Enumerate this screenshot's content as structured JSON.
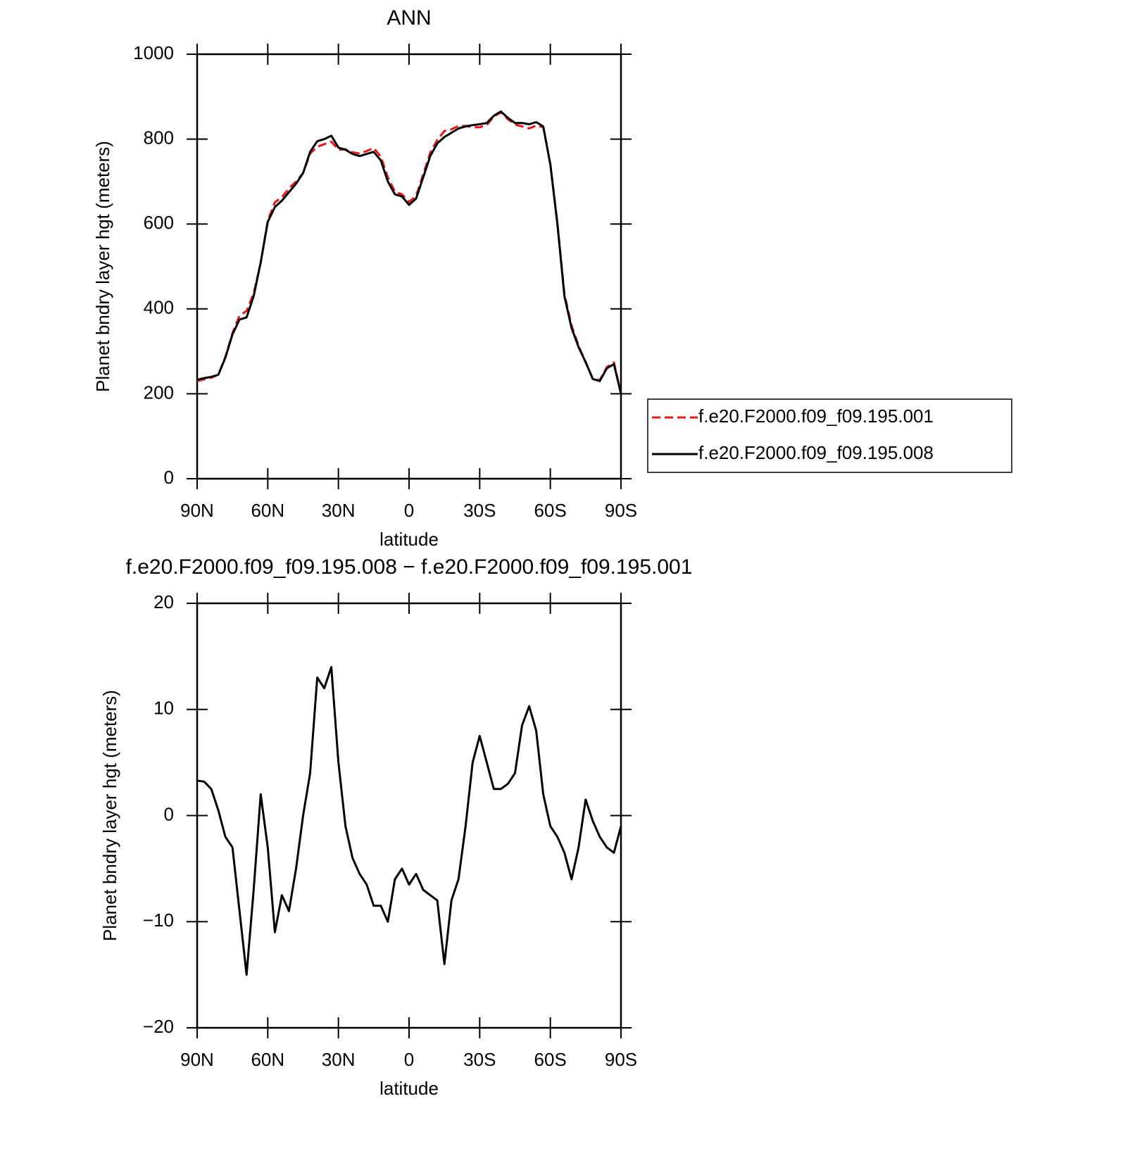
{
  "chart_data": [
    {
      "type": "line",
      "title": "ANN",
      "xlabel": "latitude",
      "ylabel": "Planet bndry layer hgt (meters)",
      "x": [
        90,
        87,
        84,
        81,
        78,
        75,
        72,
        69,
        66,
        63,
        60,
        57,
        54,
        51,
        48,
        45,
        42,
        39,
        36,
        33,
        30,
        27,
        24,
        21,
        18,
        15,
        12,
        9,
        6,
        3,
        0,
        -3,
        -6,
        -9,
        -12,
        -15,
        -18,
        -21,
        -24,
        -27,
        -30,
        -33,
        -36,
        -39,
        -42,
        -45,
        -48,
        -51,
        -54,
        -57,
        -60,
        -63,
        -66,
        -69,
        -72,
        -75,
        -78,
        -81,
        -84,
        -87,
        -90
      ],
      "series": [
        {
          "name": "f.e20.F2000.f09_f09.195.001",
          "color": "#e8161b",
          "linestyle": "dashed",
          "values": [
            230,
            234,
            238,
            245,
            287,
            343,
            384,
            395,
            437,
            508,
            608,
            651,
            663,
            684,
            700,
            720,
            766,
            782,
            788,
            794,
            775,
            776,
            769,
            766,
            772,
            779,
            759,
            710,
            676,
            670,
            652,
            666,
            717,
            768,
            798,
            819,
            823,
            831,
            831,
            828,
            828,
            833,
            853,
            863,
            847,
            834,
            830,
            825,
            832,
            828,
            741,
            602,
            434,
            361,
            313,
            274,
            236,
            232,
            263,
            274,
            201
          ]
        },
        {
          "name": "f.e20.F2000.f09_f09.195.008",
          "color": "#000000",
          "linestyle": "solid",
          "values": [
            233,
            237,
            240,
            245,
            285,
            340,
            375,
            380,
            430,
            510,
            605,
            640,
            655,
            675,
            695,
            720,
            770,
            795,
            800,
            808,
            780,
            775,
            765,
            760,
            765,
            770,
            750,
            700,
            670,
            665,
            645,
            660,
            710,
            760,
            790,
            805,
            815,
            825,
            830,
            833,
            835,
            838,
            855,
            865,
            850,
            838,
            838,
            835,
            840,
            830,
            740,
            600,
            430,
            355,
            310,
            275,
            235,
            230,
            260,
            270,
            200
          ]
        }
      ],
      "xlim": [
        90,
        -90
      ],
      "xticks": [
        {
          "value": 90,
          "label": "90N"
        },
        {
          "value": 60,
          "label": "60N"
        },
        {
          "value": 30,
          "label": "30N"
        },
        0,
        {
          "value": -30,
          "label": "30S"
        },
        {
          "value": -60,
          "label": "60S"
        },
        {
          "value": -90,
          "label": "90S"
        }
      ],
      "ylim": [
        0,
        1000
      ],
      "yticks": [
        0,
        200,
        400,
        600,
        800,
        1000
      ],
      "legend": "right"
    },
    {
      "type": "line",
      "title": "f.e20.F2000.f09_f09.195.008 − f.e20.F2000.f09_f09.195.001",
      "xlabel": "latitude",
      "ylabel": "Planet bndry layer hgt (meters)",
      "x": [
        90,
        87,
        84,
        81,
        78,
        75,
        72,
        69,
        66,
        63,
        60,
        57,
        54,
        51,
        48,
        45,
        42,
        39,
        36,
        33,
        30,
        27,
        24,
        21,
        18,
        15,
        12,
        9,
        6,
        3,
        0,
        -3,
        -6,
        -9,
        -12,
        -15,
        -18,
        -21,
        -24,
        -27,
        -30,
        -33,
        -36,
        -39,
        -42,
        -45,
        -48,
        -51,
        -54,
        -57,
        -60,
        -63,
        -66,
        -69,
        -72,
        -75,
        -78,
        -81,
        -84,
        -87,
        -90
      ],
      "series": [
        {
          "color": "#000000",
          "linestyle": "solid",
          "values": [
            3.3,
            3.2,
            2.5,
            0.5,
            -2,
            -3,
            -9,
            -15,
            -7,
            2,
            -3,
            -11,
            -7.5,
            -9,
            -5,
            0,
            4,
            13,
            12,
            14,
            5,
            -1,
            -4,
            -5.5,
            -6.5,
            -8.5,
            -8.5,
            -10,
            -6,
            -5,
            -6.5,
            -5.5,
            -7,
            -7.5,
            -8,
            -14,
            -8,
            -6,
            -1,
            5,
            7.5,
            5,
            2.5,
            2.5,
            3,
            4,
            8.5,
            10.3,
            8,
            2,
            -1,
            -2,
            -3.5,
            -6,
            -3,
            1.5,
            -0.5,
            -2,
            -3,
            -3.5,
            -1
          ]
        }
      ],
      "xlim": [
        90,
        -90
      ],
      "xticks": [
        {
          "value": 90,
          "label": "90N"
        },
        {
          "value": 60,
          "label": "60N"
        },
        {
          "value": 30,
          "label": "30N"
        },
        0,
        {
          "value": -30,
          "label": "30S"
        },
        {
          "value": -60,
          "label": "60S"
        },
        {
          "value": -90,
          "label": "90S"
        }
      ],
      "ylim": [
        -20,
        20
      ],
      "yticks": [
        {
          "value": -20,
          "label": "−20"
        },
        {
          "value": -10,
          "label": "−10"
        },
        0,
        10,
        20
      ]
    }
  ]
}
